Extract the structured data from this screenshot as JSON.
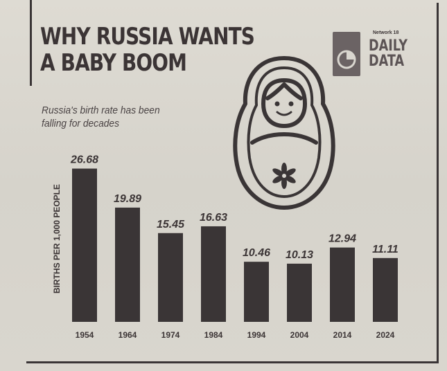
{
  "header": {
    "title_line1": "WHY RUSSIA WANTS",
    "title_line2": "A BABY BOOM",
    "subtitle_line1": "Russia's birth rate has been",
    "subtitle_line2": "falling for decades"
  },
  "logo": {
    "network": "Network 18",
    "daily": "DAILY",
    "data": "DATA"
  },
  "illustration": {
    "icon": "matryoshka-doll-icon"
  },
  "colors": {
    "bar": "#3a3536",
    "text": "#3b3435",
    "background": "#d9d6cf"
  },
  "chart_data": {
    "type": "bar",
    "title": "WHY RUSSIA WANTS A BABY BOOM",
    "subtitle": "Russia's birth rate has been falling for decades",
    "ylabel": "BIRTHS PER 1,000 PEOPLE",
    "xlabel": "",
    "categories": [
      "1954",
      "1964",
      "1974",
      "1984",
      "1994",
      "2004",
      "2014",
      "2024"
    ],
    "values": [
      26.68,
      19.89,
      15.45,
      16.63,
      10.46,
      10.13,
      12.94,
      11.11
    ],
    "value_labels": [
      "26.68",
      "19.89",
      "15.45",
      "16.63",
      "10.46",
      "10.13",
      "12.94",
      "11.11"
    ],
    "ylim": [
      0,
      30
    ],
    "grid": false,
    "legend": "none"
  }
}
